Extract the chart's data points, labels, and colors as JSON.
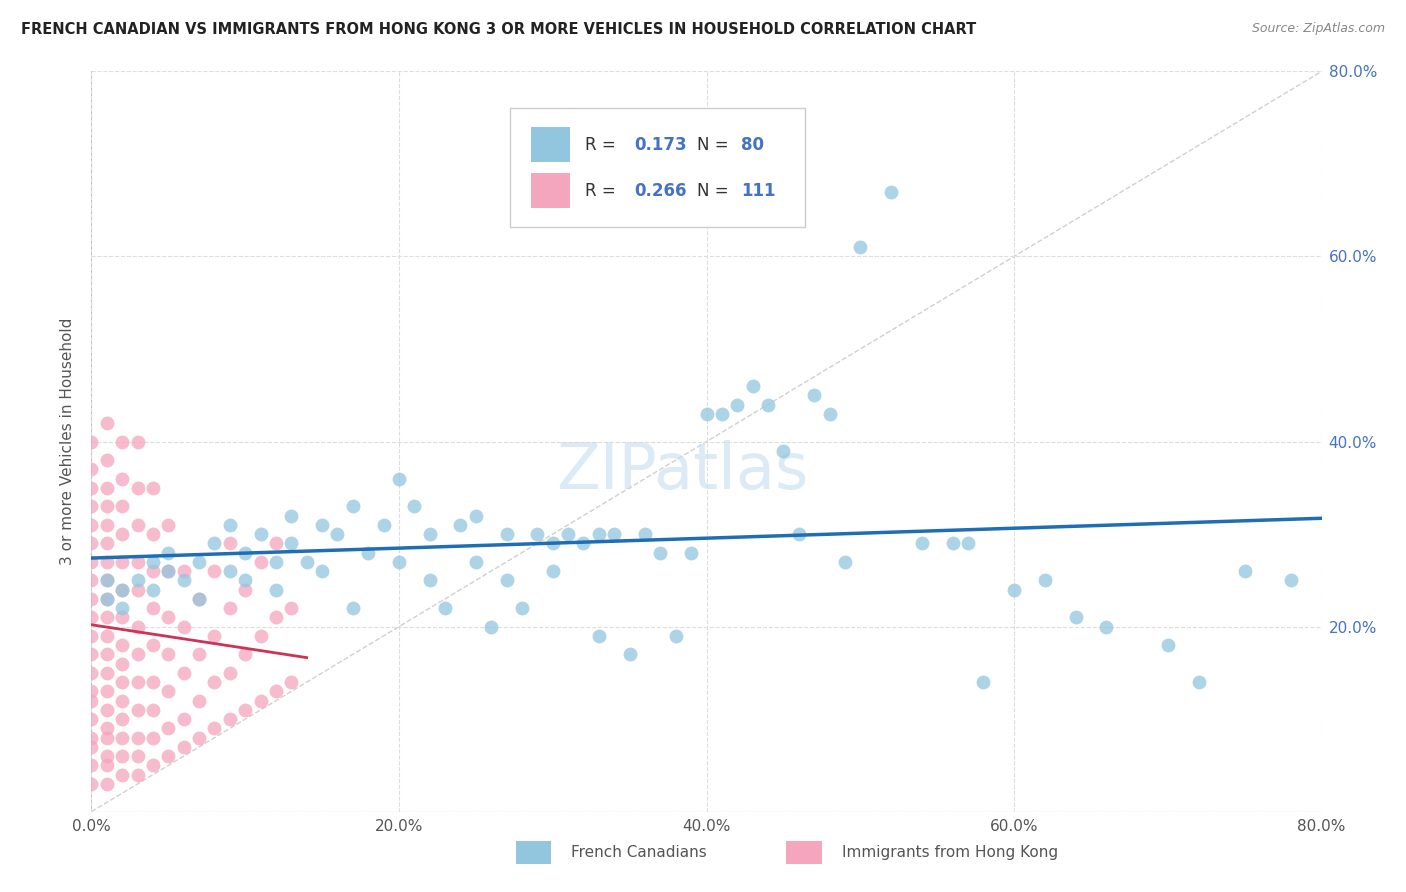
{
  "title": "FRENCH CANADIAN VS IMMIGRANTS FROM HONG KONG 3 OR MORE VEHICLES IN HOUSEHOLD CORRELATION CHART",
  "source": "Source: ZipAtlas.com",
  "ylabel": "3 or more Vehicles in Household",
  "xlim": [
    0.0,
    0.8
  ],
  "ylim": [
    0.0,
    0.8
  ],
  "xtick_vals": [
    0.0,
    0.2,
    0.4,
    0.6,
    0.8
  ],
  "xtick_labels": [
    "0.0%",
    "20.0%",
    "40.0%",
    "60.0%",
    "80.0%"
  ],
  "ytick_vals": [
    0.0,
    0.2,
    0.4,
    0.6,
    0.8
  ],
  "ytick_labels_right": [
    "",
    "20.0%",
    "40.0%",
    "60.0%",
    "80.0%"
  ],
  "series1_label": "French Canadians",
  "series2_label": "Immigrants from Hong Kong",
  "series1_color": "#92c5de",
  "series2_color": "#f4a6be",
  "series1_R": 0.173,
  "series1_N": 80,
  "series2_R": 0.266,
  "series2_N": 111,
  "regression_color1": "#1f6eb5",
  "regression_color2": "#cc3355",
  "diagonal_color": "#d0d0d0",
  "blue_text_color": "#4472c4",
  "title_color": "#222222",
  "source_color": "#888888",
  "axis_label_color": "#555555",
  "tick_color": "#555555",
  "watermark_color": "#c5ddf0"
}
